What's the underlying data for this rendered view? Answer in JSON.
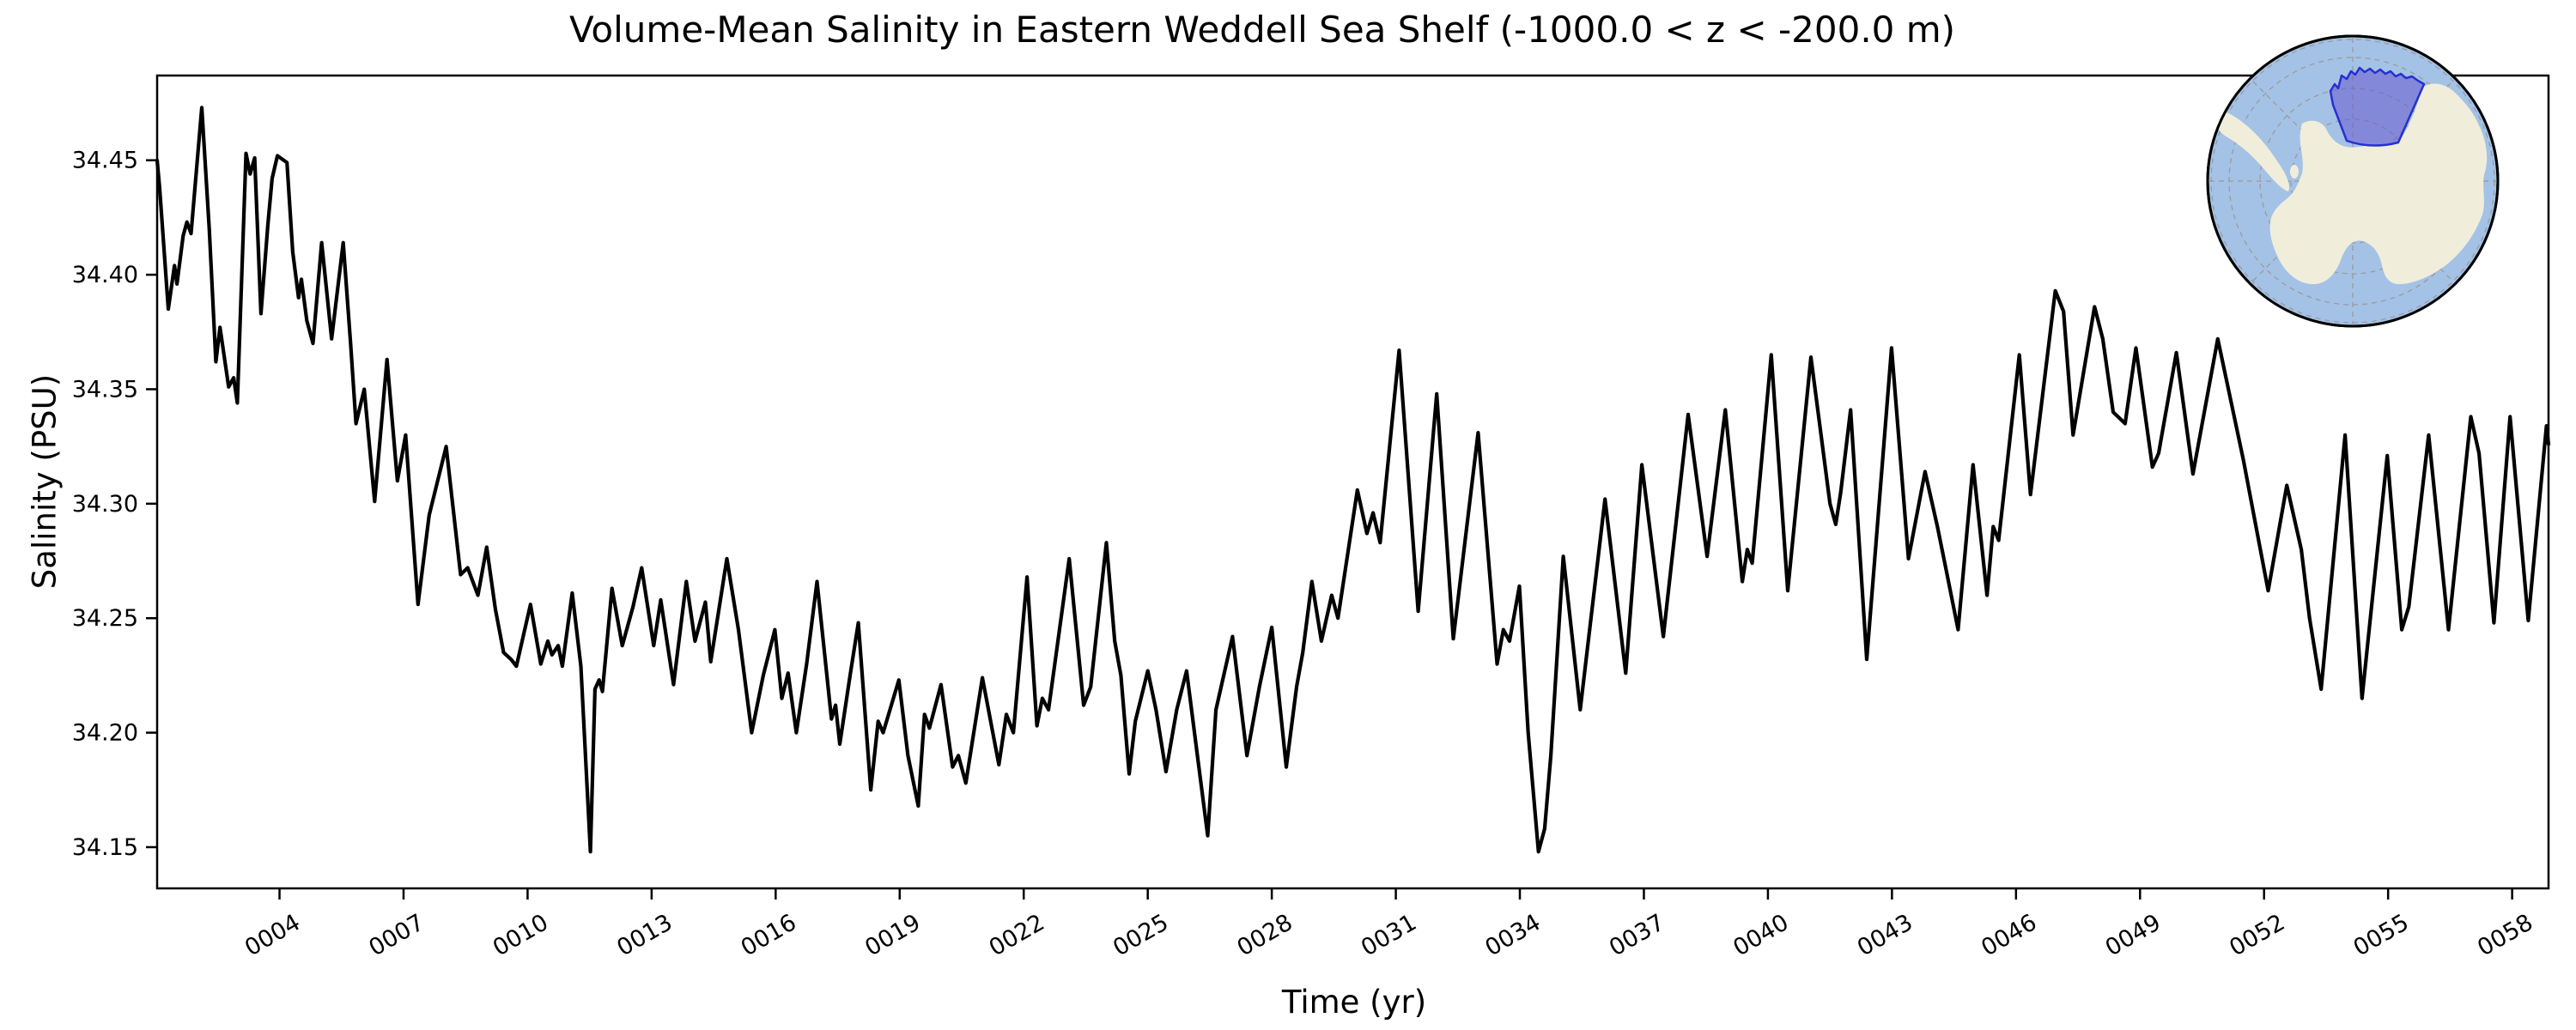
{
  "chart_data": {
    "type": "line",
    "title": "Volume-Mean Salinity in Eastern Weddell Sea Shelf (-1000.0 < z < -200.0 m)",
    "xlabel": "Time (yr)",
    "ylabel": "Salinity (PSU)",
    "xlim": [
      1.04,
      58.88
    ],
    "ylim": [
      34.132,
      34.487
    ],
    "grid": false,
    "legend": "none",
    "x_tick_labels": [
      "0004",
      "0007",
      "0010",
      "0013",
      "0016",
      "0019",
      "0022",
      "0025",
      "0028",
      "0031",
      "0034",
      "0037",
      "0040",
      "0043",
      "0046",
      "0049",
      "0052",
      "0055",
      "0058"
    ],
    "x_tick_years": [
      4,
      7,
      10,
      13,
      16,
      19,
      22,
      25,
      28,
      31,
      34,
      37,
      40,
      43,
      46,
      49,
      52,
      55,
      58
    ],
    "y_ticks": [
      34.15,
      34.2,
      34.25,
      34.3,
      34.35,
      34.4,
      34.45
    ],
    "y_tick_labels": [
      "34.15",
      "34.20",
      "34.25",
      "34.30",
      "34.35",
      "34.40",
      "34.45"
    ],
    "series": [
      {
        "name": "volume-mean salinity",
        "color": "#000000",
        "points": [
          [
            1.04,
            34.45
          ],
          [
            1.1,
            34.438
          ],
          [
            1.31,
            34.385
          ],
          [
            1.46,
            34.404
          ],
          [
            1.52,
            34.396
          ],
          [
            1.67,
            34.417
          ],
          [
            1.76,
            34.423
          ],
          [
            1.86,
            34.418
          ],
          [
            2.12,
            34.473
          ],
          [
            2.3,
            34.42
          ],
          [
            2.46,
            34.362
          ],
          [
            2.56,
            34.377
          ],
          [
            2.77,
            34.351
          ],
          [
            2.89,
            34.355
          ],
          [
            2.98,
            34.344
          ],
          [
            3.19,
            34.453
          ],
          [
            3.29,
            34.444
          ],
          [
            3.4,
            34.451
          ],
          [
            3.55,
            34.383
          ],
          [
            3.72,
            34.422
          ],
          [
            3.82,
            34.442
          ],
          [
            3.95,
            34.452
          ],
          [
            4.18,
            34.449
          ],
          [
            4.32,
            34.41
          ],
          [
            4.46,
            34.39
          ],
          [
            4.53,
            34.398
          ],
          [
            4.66,
            34.38
          ],
          [
            4.81,
            34.37
          ],
          [
            5.02,
            34.414
          ],
          [
            5.26,
            34.372
          ],
          [
            5.54,
            34.414
          ],
          [
            5.72,
            34.37
          ],
          [
            5.85,
            34.335
          ],
          [
            6.05,
            34.35
          ],
          [
            6.3,
            34.301
          ],
          [
            6.6,
            34.363
          ],
          [
            6.85,
            34.31
          ],
          [
            7.05,
            34.33
          ],
          [
            7.35,
            34.256
          ],
          [
            7.62,
            34.295
          ],
          [
            8.03,
            34.325
          ],
          [
            8.38,
            34.269
          ],
          [
            8.55,
            34.272
          ],
          [
            8.8,
            34.26
          ],
          [
            9.01,
            34.281
          ],
          [
            9.22,
            34.254
          ],
          [
            9.42,
            34.235
          ],
          [
            9.6,
            34.232
          ],
          [
            9.73,
            34.229
          ],
          [
            10.07,
            34.256
          ],
          [
            10.32,
            34.23
          ],
          [
            10.49,
            34.24
          ],
          [
            10.59,
            34.234
          ],
          [
            10.74,
            34.238
          ],
          [
            10.84,
            34.229
          ],
          [
            11.08,
            34.261
          ],
          [
            11.29,
            34.229
          ],
          [
            11.52,
            34.148
          ],
          [
            11.63,
            34.219
          ],
          [
            11.73,
            34.223
          ],
          [
            11.81,
            34.218
          ],
          [
            12.04,
            34.263
          ],
          [
            12.29,
            34.238
          ],
          [
            12.55,
            34.255
          ],
          [
            12.76,
            34.272
          ],
          [
            13.05,
            34.238
          ],
          [
            13.22,
            34.258
          ],
          [
            13.53,
            34.221
          ],
          [
            13.84,
            34.266
          ],
          [
            14.05,
            34.24
          ],
          [
            14.3,
            34.257
          ],
          [
            14.43,
            34.231
          ],
          [
            14.82,
            34.276
          ],
          [
            15.1,
            34.245
          ],
          [
            15.42,
            34.2
          ],
          [
            15.7,
            34.225
          ],
          [
            15.98,
            34.245
          ],
          [
            16.15,
            34.215
          ],
          [
            16.3,
            34.226
          ],
          [
            16.5,
            34.2
          ],
          [
            16.75,
            34.23
          ],
          [
            17.0,
            34.266
          ],
          [
            17.35,
            34.206
          ],
          [
            17.45,
            34.212
          ],
          [
            17.55,
            34.195
          ],
          [
            17.8,
            34.225
          ],
          [
            18.0,
            34.248
          ],
          [
            18.3,
            34.175
          ],
          [
            18.48,
            34.205
          ],
          [
            18.6,
            34.2
          ],
          [
            18.98,
            34.223
          ],
          [
            19.2,
            34.19
          ],
          [
            19.45,
            34.168
          ],
          [
            19.6,
            34.208
          ],
          [
            19.72,
            34.202
          ],
          [
            20.0,
            34.221
          ],
          [
            20.28,
            34.185
          ],
          [
            20.42,
            34.19
          ],
          [
            20.6,
            34.178
          ],
          [
            21.0,
            34.224
          ],
          [
            21.4,
            34.186
          ],
          [
            21.58,
            34.208
          ],
          [
            21.75,
            34.2
          ],
          [
            22.08,
            34.268
          ],
          [
            22.32,
            34.203
          ],
          [
            22.45,
            34.215
          ],
          [
            22.6,
            34.21
          ],
          [
            23.1,
            34.276
          ],
          [
            23.45,
            34.212
          ],
          [
            23.62,
            34.22
          ],
          [
            24.0,
            34.283
          ],
          [
            24.2,
            34.24
          ],
          [
            24.35,
            34.225
          ],
          [
            24.55,
            34.182
          ],
          [
            24.7,
            34.205
          ],
          [
            25.0,
            34.227
          ],
          [
            25.2,
            34.21
          ],
          [
            25.44,
            34.183
          ],
          [
            25.7,
            34.21
          ],
          [
            25.94,
            34.227
          ],
          [
            26.2,
            34.19
          ],
          [
            26.45,
            34.155
          ],
          [
            26.65,
            34.21
          ],
          [
            27.05,
            34.242
          ],
          [
            27.4,
            34.19
          ],
          [
            27.7,
            34.22
          ],
          [
            28.0,
            34.246
          ],
          [
            28.35,
            34.185
          ],
          [
            28.6,
            34.22
          ],
          [
            28.75,
            34.235
          ],
          [
            28.97,
            34.266
          ],
          [
            29.2,
            34.24
          ],
          [
            29.45,
            34.26
          ],
          [
            29.6,
            34.25
          ],
          [
            30.07,
            34.306
          ],
          [
            30.3,
            34.287
          ],
          [
            30.45,
            34.296
          ],
          [
            30.62,
            34.283
          ],
          [
            31.08,
            34.367
          ],
          [
            31.54,
            34.253
          ],
          [
            31.99,
            34.348
          ],
          [
            32.39,
            34.241
          ],
          [
            32.99,
            34.331
          ],
          [
            33.45,
            34.23
          ],
          [
            33.6,
            34.245
          ],
          [
            33.75,
            34.24
          ],
          [
            33.99,
            34.264
          ],
          [
            34.2,
            34.2
          ],
          [
            34.45,
            34.148
          ],
          [
            34.6,
            34.158
          ],
          [
            34.75,
            34.19
          ],
          [
            35.05,
            34.277
          ],
          [
            35.46,
            34.21
          ],
          [
            36.06,
            34.302
          ],
          [
            36.56,
            34.226
          ],
          [
            36.95,
            34.317
          ],
          [
            37.47,
            34.242
          ],
          [
            38.07,
            34.339
          ],
          [
            38.53,
            34.277
          ],
          [
            38.97,
            34.341
          ],
          [
            39.38,
            34.266
          ],
          [
            39.5,
            34.28
          ],
          [
            39.62,
            34.274
          ],
          [
            40.08,
            34.365
          ],
          [
            40.48,
            34.262
          ],
          [
            41.04,
            34.364
          ],
          [
            41.5,
            34.3
          ],
          [
            41.64,
            34.291
          ],
          [
            41.76,
            34.305
          ],
          [
            42.0,
            34.341
          ],
          [
            42.39,
            34.232
          ],
          [
            42.99,
            34.368
          ],
          [
            43.4,
            34.276
          ],
          [
            43.8,
            34.314
          ],
          [
            44.1,
            34.29
          ],
          [
            44.3,
            34.272
          ],
          [
            44.6,
            34.245
          ],
          [
            44.96,
            34.317
          ],
          [
            45.3,
            34.26
          ],
          [
            45.45,
            34.29
          ],
          [
            45.58,
            34.284
          ],
          [
            46.08,
            34.365
          ],
          [
            46.35,
            34.304
          ],
          [
            46.95,
            34.393
          ],
          [
            47.15,
            34.384
          ],
          [
            47.38,
            34.33
          ],
          [
            47.9,
            34.386
          ],
          [
            48.1,
            34.372
          ],
          [
            48.35,
            34.34
          ],
          [
            48.64,
            34.335
          ],
          [
            48.9,
            34.368
          ],
          [
            49.3,
            34.316
          ],
          [
            49.45,
            34.322
          ],
          [
            49.88,
            34.366
          ],
          [
            50.28,
            34.313
          ],
          [
            50.88,
            34.372
          ],
          [
            51.5,
            34.319
          ],
          [
            52.1,
            34.262
          ],
          [
            52.55,
            34.308
          ],
          [
            52.9,
            34.28
          ],
          [
            53.1,
            34.25
          ],
          [
            53.38,
            34.219
          ],
          [
            53.96,
            34.33
          ],
          [
            54.37,
            34.215
          ],
          [
            54.98,
            34.321
          ],
          [
            55.33,
            34.245
          ],
          [
            55.5,
            34.255
          ],
          [
            55.98,
            34.33
          ],
          [
            56.46,
            34.245
          ],
          [
            57.0,
            34.338
          ],
          [
            57.2,
            34.322
          ],
          [
            57.56,
            34.248
          ],
          [
            57.95,
            34.338
          ],
          [
            58.39,
            34.249
          ],
          [
            58.83,
            34.334
          ],
          [
            58.88,
            34.326
          ]
        ]
      }
    ]
  },
  "axes_style": {
    "spine_color": "#000000",
    "tick_color": "#000000",
    "background": "#ffffff",
    "line_width": 4.2
  },
  "inset_map": {
    "ocean_color": "#a4c2e6",
    "land_color": "#f0eedb",
    "region_fill": "#6a5acd",
    "region_fill_opacity": "0.55",
    "region_edge": "#2630d0",
    "graticule_color": "#9a9a9a",
    "boundary_color": "#000000"
  }
}
